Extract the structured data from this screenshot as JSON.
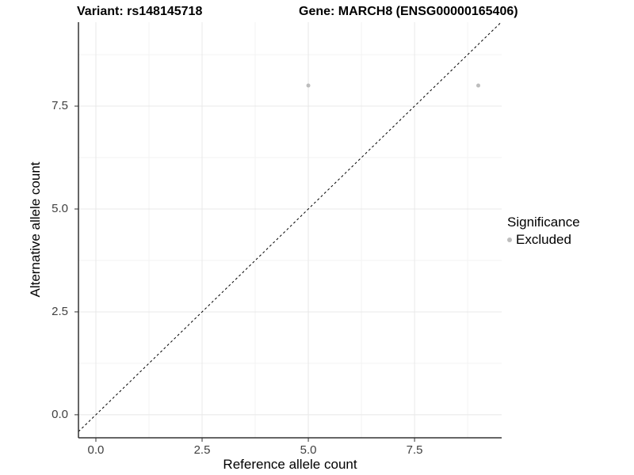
{
  "titles": {
    "left": "Variant: rs148145718",
    "right": "Gene: MARCH8 (ENSG00000165406)"
  },
  "chart_data": {
    "type": "scatter",
    "title_left": "Variant: rs148145718",
    "title_right": "Gene: MARCH8 (ENSG00000165406)",
    "xlabel": "Reference allele count",
    "ylabel": "Alternative allele count",
    "xlim": [
      -0.41,
      9.55
    ],
    "ylim": [
      -0.56,
      9.54
    ],
    "x_ticks": {
      "values": [
        0,
        2.5,
        5,
        7.5
      ],
      "labels": [
        "0.0",
        "2.5",
        "5.0",
        "7.5"
      ]
    },
    "y_ticks": {
      "values": [
        0,
        2.5,
        5,
        7.5
      ],
      "labels": [
        "0.0",
        "2.5",
        "5.0",
        "7.5"
      ]
    },
    "x_minor_ticks": [
      1.25,
      3.75,
      6.25,
      8.75
    ],
    "y_minor_ticks": [
      1.25,
      3.75,
      6.25,
      8.75
    ],
    "grid": "major+minor",
    "points": [
      {
        "x": 5,
        "y": 8,
        "series": "Excluded"
      },
      {
        "x": 9,
        "y": 8,
        "series": "Excluded"
      }
    ],
    "point_radius": 2.5,
    "reference_line": {
      "kind": "identity",
      "slope": 1,
      "intercept": 0,
      "style": "dashed",
      "color": "#000000"
    },
    "legend": {
      "position": "right",
      "title": "Significance",
      "items": [
        {
          "label": "Excluded",
          "color": "#bdbdbd"
        }
      ]
    },
    "colors": {
      "point": "#bdbdbd",
      "grid_major": "#e8e8e8",
      "grid_minor": "#f3f3f3",
      "axis_line": "#333333",
      "tick_mark": "#333333",
      "tick_label": "#404040",
      "text": "#000000",
      "background": "#ffffff"
    }
  }
}
